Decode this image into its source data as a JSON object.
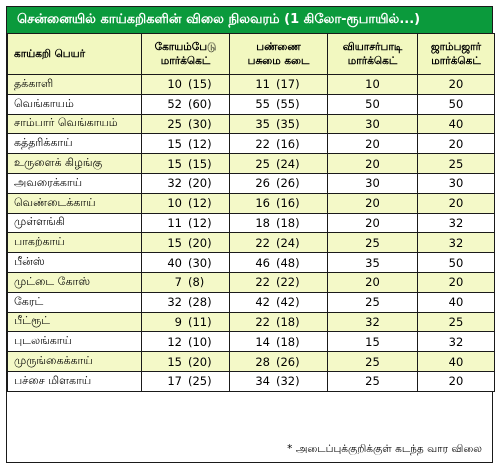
{
  "title": "சென்னையில் காய்கறிகளின் விலை நிலவரம் (1 கிலோ-ரூபாயில்...)",
  "headers": {
    "name": "காய்கறி பெயர்",
    "koyambedu_line1": "கோயம்பேடு",
    "koyambedu_line2": "மார்க்கெட்",
    "pannai_line1": "பண்ணை",
    "pannai_line2": "பசுமை கடை",
    "vyasarpadi_line1": "வியாசர்பாடி",
    "vyasarpadi_line2": "மார்க்கெட்",
    "jambazar_line1": "ஜாம்பஜார்",
    "jambazar_line2": "மார்க்கெட்"
  },
  "rows": [
    {
      "name": "தக்காளி",
      "koyambedu": "10",
      "koyambedu_prev": "(15)",
      "pannai": "11",
      "pannai_prev": "(17)",
      "vyasarpadi": "10",
      "jambazar": "20"
    },
    {
      "name": "வெங்காயம்",
      "koyambedu": "52",
      "koyambedu_prev": "(60)",
      "pannai": "55",
      "pannai_prev": "(55)",
      "vyasarpadi": "50",
      "jambazar": "50"
    },
    {
      "name": "சாம்பார் வெங்காயம்",
      "koyambedu": "25",
      "koyambedu_prev": "(30)",
      "pannai": "35",
      "pannai_prev": "(35)",
      "vyasarpadi": "30",
      "jambazar": "40"
    },
    {
      "name": "கத்தரிக்காய்",
      "koyambedu": "15",
      "koyambedu_prev": "(12)",
      "pannai": "22",
      "pannai_prev": "(16)",
      "vyasarpadi": "20",
      "jambazar": "20"
    },
    {
      "name": "உருளைக் கிழங்கு",
      "koyambedu": "15",
      "koyambedu_prev": "(15)",
      "pannai": "25",
      "pannai_prev": "(24)",
      "vyasarpadi": "20",
      "jambazar": "25"
    },
    {
      "name": "அவரைக்காய்",
      "koyambedu": "32",
      "koyambedu_prev": "(20)",
      "pannai": "26",
      "pannai_prev": "(26)",
      "vyasarpadi": "30",
      "jambazar": "30"
    },
    {
      "name": "வெண்டைக்காய்",
      "koyambedu": "10",
      "koyambedu_prev": "(12)",
      "pannai": "16",
      "pannai_prev": "(16)",
      "vyasarpadi": "20",
      "jambazar": "20"
    },
    {
      "name": "முள்ளங்கி",
      "koyambedu": "11",
      "koyambedu_prev": "(12)",
      "pannai": "18",
      "pannai_prev": "(18)",
      "vyasarpadi": "20",
      "jambazar": "32"
    },
    {
      "name": "பாகற்காய்",
      "koyambedu": "15",
      "koyambedu_prev": "(20)",
      "pannai": "22",
      "pannai_prev": "(24)",
      "vyasarpadi": "25",
      "jambazar": "32"
    },
    {
      "name": "பீன்ஸ்",
      "koyambedu": "40",
      "koyambedu_prev": "(30)",
      "pannai": "46",
      "pannai_prev": "(48)",
      "vyasarpadi": "35",
      "jambazar": "50"
    },
    {
      "name": "முட்டை கோஸ்",
      "koyambedu": "7",
      "koyambedu_prev": "(8)",
      "pannai": "22",
      "pannai_prev": "(22)",
      "vyasarpadi": "20",
      "jambazar": "20"
    },
    {
      "name": "கேரட்",
      "koyambedu": "32",
      "koyambedu_prev": "(28)",
      "pannai": "42",
      "pannai_prev": "(42)",
      "vyasarpadi": "25",
      "jambazar": "40"
    },
    {
      "name": "பீட்ரூட்",
      "koyambedu": "9",
      "koyambedu_prev": "(11)",
      "pannai": "22",
      "pannai_prev": "(18)",
      "vyasarpadi": "32",
      "jambazar": "25"
    },
    {
      "name": "புடலங்காய்",
      "koyambedu": "12",
      "koyambedu_prev": "(10)",
      "pannai": "14",
      "pannai_prev": "(18)",
      "vyasarpadi": "15",
      "jambazar": "32"
    },
    {
      "name": "முருங்கைக்காய்",
      "koyambedu": "15",
      "koyambedu_prev": "(20)",
      "pannai": "28",
      "pannai_prev": "(26)",
      "vyasarpadi": "25",
      "jambazar": "40"
    },
    {
      "name": "பச்சை மிளகாய்",
      "koyambedu": "17",
      "koyambedu_prev": "(25)",
      "pannai": "34",
      "pannai_prev": "(32)",
      "vyasarpadi": "25",
      "jambazar": "20"
    }
  ],
  "footnote": "* அடைப்புக்குறிக்குள் கடந்த வார விலை",
  "colors": {
    "title_bg": "#0b9a3c",
    "header_bg": "#f2f8c0",
    "row_alt_bg": "#f4f9c8"
  }
}
